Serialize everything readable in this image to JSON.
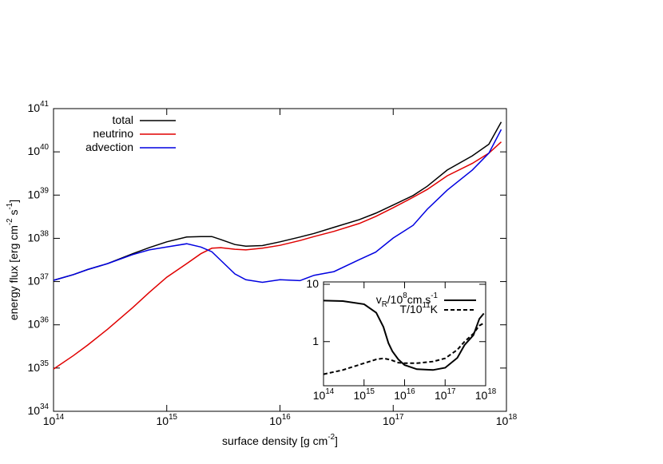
{
  "chart_data": [
    {
      "type": "line",
      "log_x": true,
      "log_y": true,
      "xlabel": "surface density [g cm^{-2}]",
      "ylabel": "energy flux [erg cm^{-2} s^{-1}]",
      "legend": "top-left",
      "x": [
        100000000000000.0,
        150000000000000.0,
        200000000000000.0,
        300000000000000.0,
        500000000000000.0,
        700000000000000.0,
        1000000000000000.0,
        1500000000000000.0,
        2000000000000000.0,
        2500000000000000.0,
        3000000000000000.0,
        4000000000000000.0,
        5000000000000000.0,
        7000000000000000.0,
        1e+16,
        1.5e+16,
        2e+16,
        3e+16,
        5e+16,
        7e+16,
        1e+17,
        1.5e+17,
        2e+17,
        3e+17,
        5e+17,
        7e+17,
        9e+17
      ],
      "series": [
        {
          "name": "total",
          "color": "#000000",
          "dash": false,
          "values": [
            1.07e+37,
            1.45e+37,
            1.9e+37,
            2.6e+37,
            4.4e+37,
            6.1e+37,
            8.3e+37,
            1.07e+38,
            1.1e+38,
            1.1e+38,
            9.4e+37,
            7.2e+37,
            6.6e+37,
            6.8e+37,
            8.3e+37,
            1.07e+38,
            1.3e+38,
            1.8e+38,
            2.7e+38,
            3.8e+38,
            5.9e+38,
            9.8e+38,
            1.6e+39,
            3.8e+39,
            8.1e+39,
            1.5e+40,
            4.9e+40
          ]
        },
        {
          "name": "neutrino",
          "color": "#e00000",
          "dash": false,
          "values": [
            9.5e+34,
            1.95e+35,
            3.4e+35,
            7.9e+35,
            2.5e+36,
            5.6e+36,
            1.26e+37,
            2.6e+37,
            4.4e+37,
            5.9e+37,
            6.1e+37,
            5.6e+37,
            5.4e+37,
            5.9e+37,
            6.9e+37,
            8.9e+37,
            1.1e+38,
            1.45e+38,
            2.2e+38,
            3.2e+38,
            5.1e+38,
            8.9e+38,
            1.35e+39,
            2.8e+39,
            5.4e+39,
            9.3e+39,
            1.7e+40
          ]
        },
        {
          "name": "advection",
          "color": "#0000e0",
          "dash": false,
          "values": [
            1.07e+37,
            1.45e+37,
            1.9e+37,
            2.6e+37,
            4.2e+37,
            5.4e+37,
            6.3e+37,
            7.5e+37,
            6.3e+37,
            4.9e+37,
            3.1e+37,
            1.5e+37,
            1.1e+37,
            9.6e+36,
            1.1e+37,
            1.05e+37,
            1.4e+37,
            1.7e+37,
            3.2e+37,
            4.8e+37,
            1.02e+38,
            2e+38,
            4.7e+38,
            1.3e+39,
            3.8e+39,
            9.3e+39,
            3.3e+40
          ]
        }
      ],
      "xlim": [
        100000000000000.0,
        1e+18
      ],
      "xticks": [
        {
          "value": 100000000000000.0,
          "label": "10^{14}"
        },
        {
          "value": 1000000000000000.0,
          "label": "10^{15}"
        },
        {
          "value": 1e+16,
          "label": "10^{16}"
        },
        {
          "value": 1e+17,
          "label": "10^{17}"
        },
        {
          "value": 1e+18,
          "label": "10^{18}"
        }
      ],
      "ylim": [
        1e+34,
        1e+41
      ],
      "yticks": [
        {
          "value": 1e+34,
          "label": "10^{34}"
        },
        {
          "value": 1e+35,
          "label": "10^{35}"
        },
        {
          "value": 1e+36,
          "label": "10^{36}"
        },
        {
          "value": 1e+37,
          "label": "10^{37}"
        },
        {
          "value": 1e+38,
          "label": "10^{38}"
        },
        {
          "value": 1e+39,
          "label": "10^{39}"
        },
        {
          "value": 1e+40,
          "label": "10^{40}"
        },
        {
          "value": 1e+41,
          "label": "10^{41}"
        }
      ]
    },
    {
      "type": "line",
      "log_x": true,
      "log_y": true,
      "legend": "top-right",
      "x": [
        100000000000000.0,
        300000000000000.0,
        1000000000000000.0,
        2000000000000000.0,
        3000000000000000.0,
        4000000000000000.0,
        5000000000000000.0,
        7000000000000000.0,
        1e+16,
        2e+16,
        5e+16,
        1e+17,
        2e+17,
        3e+17,
        5e+17,
        7e+17,
        9e+17
      ],
      "series": [
        {
          "name": "v_{R}/10^{8}cm s^{-1}",
          "color": "#000000",
          "dash": false,
          "values": [
            5.2,
            5.1,
            4.5,
            3.2,
            1.8,
            0.94,
            0.68,
            0.49,
            0.39,
            0.33,
            0.32,
            0.35,
            0.52,
            0.87,
            1.3,
            2.5,
            3.1
          ]
        },
        {
          "name": "T/10^{11}K",
          "color": "#000000",
          "dash": true,
          "values": [
            0.27,
            0.32,
            0.42,
            0.49,
            0.51,
            0.49,
            0.47,
            0.43,
            0.42,
            0.42,
            0.45,
            0.51,
            0.72,
            1.0,
            1.38,
            1.9,
            2.1
          ]
        }
      ],
      "xlim": [
        100000000000000.0,
        1e+18
      ],
      "xticks": [
        {
          "value": 100000000000000.0,
          "label": "10^{14}"
        },
        {
          "value": 1000000000000000.0,
          "label": "10^{15}"
        },
        {
          "value": 1e+16,
          "label": "10^{16}"
        },
        {
          "value": 1e+17,
          "label": "10^{17}"
        },
        {
          "value": 1e+18,
          "label": "10^{18}"
        }
      ],
      "ylim": [
        0.17,
        11
      ],
      "yticks": [
        1,
        10
      ]
    }
  ]
}
